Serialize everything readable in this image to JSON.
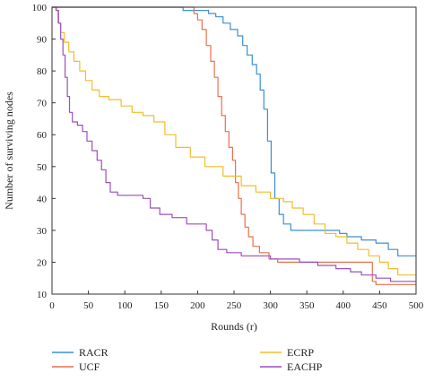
{
  "chart_data": {
    "type": "line",
    "xlabel": "Rounds (r)",
    "ylabel": "Number of surviving nodes",
    "xlim": [
      0,
      500
    ],
    "ylim": [
      10,
      100
    ],
    "xticks": [
      0,
      50,
      100,
      150,
      200,
      250,
      300,
      350,
      400,
      450,
      500
    ],
    "yticks": [
      10,
      20,
      30,
      40,
      50,
      60,
      70,
      80,
      90,
      100
    ],
    "grid": false,
    "legend_position": "bottom",
    "series": [
      {
        "name": "RACR",
        "color": "#3b8fd3",
        "points": [
          [
            0,
            100
          ],
          [
            175,
            100
          ],
          [
            180,
            99
          ],
          [
            205,
            99
          ],
          [
            215,
            98
          ],
          [
            225,
            97
          ],
          [
            235,
            95
          ],
          [
            245,
            93
          ],
          [
            255,
            91
          ],
          [
            262,
            88
          ],
          [
            268,
            85
          ],
          [
            275,
            82
          ],
          [
            281,
            79
          ],
          [
            286,
            74
          ],
          [
            291,
            68
          ],
          [
            296,
            58
          ],
          [
            301,
            48
          ],
          [
            306,
            40
          ],
          [
            312,
            35
          ],
          [
            318,
            32
          ],
          [
            328,
            30
          ],
          [
            360,
            30
          ],
          [
            395,
            29
          ],
          [
            405,
            28
          ],
          [
            425,
            27
          ],
          [
            445,
            26
          ],
          [
            462,
            24
          ],
          [
            475,
            22
          ],
          [
            500,
            22
          ]
        ]
      },
      {
        "name": "UCF",
        "color": "#e8714c",
        "points": [
          [
            0,
            100
          ],
          [
            190,
            100
          ],
          [
            195,
            98
          ],
          [
            200,
            96
          ],
          [
            206,
            93
          ],
          [
            212,
            88
          ],
          [
            218,
            83
          ],
          [
            223,
            78
          ],
          [
            228,
            72
          ],
          [
            233,
            66
          ],
          [
            238,
            61
          ],
          [
            243,
            56
          ],
          [
            248,
            52
          ],
          [
            252,
            45
          ],
          [
            256,
            40
          ],
          [
            260,
            35
          ],
          [
            265,
            31
          ],
          [
            270,
            28
          ],
          [
            276,
            25
          ],
          [
            285,
            23
          ],
          [
            298,
            21
          ],
          [
            310,
            20
          ],
          [
            330,
            20
          ],
          [
            360,
            20
          ],
          [
            405,
            20
          ],
          [
            435,
            20
          ],
          [
            440,
            14
          ],
          [
            445,
            13
          ],
          [
            500,
            13
          ]
        ]
      },
      {
        "name": "ECRP",
        "color": "#f2bd2b",
        "points": [
          [
            0,
            100
          ],
          [
            5,
            99
          ],
          [
            8,
            95
          ],
          [
            12,
            92
          ],
          [
            17,
            89
          ],
          [
            23,
            86
          ],
          [
            30,
            83
          ],
          [
            38,
            80
          ],
          [
            46,
            77
          ],
          [
            55,
            74
          ],
          [
            65,
            72
          ],
          [
            78,
            71
          ],
          [
            95,
            69
          ],
          [
            110,
            67
          ],
          [
            125,
            66
          ],
          [
            140,
            64
          ],
          [
            155,
            60
          ],
          [
            170,
            56
          ],
          [
            190,
            53
          ],
          [
            210,
            50
          ],
          [
            235,
            47
          ],
          [
            260,
            44
          ],
          [
            280,
            42
          ],
          [
            300,
            40
          ],
          [
            318,
            39
          ],
          [
            330,
            37
          ],
          [
            345,
            35
          ],
          [
            360,
            32
          ],
          [
            375,
            29
          ],
          [
            390,
            28
          ],
          [
            405,
            26
          ],
          [
            420,
            24
          ],
          [
            435,
            22
          ],
          [
            450,
            20
          ],
          [
            462,
            18
          ],
          [
            475,
            16
          ],
          [
            500,
            16
          ]
        ]
      },
      {
        "name": "EACHP",
        "color": "#9a4fbf",
        "points": [
          [
            0,
            100
          ],
          [
            6,
            99
          ],
          [
            9,
            95
          ],
          [
            12,
            90
          ],
          [
            15,
            85
          ],
          [
            18,
            78
          ],
          [
            21,
            72
          ],
          [
            24,
            67
          ],
          [
            28,
            64
          ],
          [
            35,
            63
          ],
          [
            42,
            61
          ],
          [
            48,
            58
          ],
          [
            55,
            55
          ],
          [
            62,
            52
          ],
          [
            68,
            49
          ],
          [
            74,
            45
          ],
          [
            80,
            42
          ],
          [
            90,
            41
          ],
          [
            110,
            41
          ],
          [
            125,
            40
          ],
          [
            135,
            37
          ],
          [
            148,
            35
          ],
          [
            165,
            34
          ],
          [
            185,
            32
          ],
          [
            205,
            32
          ],
          [
            212,
            30
          ],
          [
            220,
            27
          ],
          [
            228,
            24
          ],
          [
            240,
            23
          ],
          [
            260,
            22
          ],
          [
            300,
            21
          ],
          [
            340,
            20
          ],
          [
            365,
            19
          ],
          [
            390,
            18
          ],
          [
            410,
            17
          ],
          [
            425,
            16
          ],
          [
            445,
            15
          ],
          [
            465,
            14
          ],
          [
            500,
            14
          ]
        ]
      }
    ]
  }
}
